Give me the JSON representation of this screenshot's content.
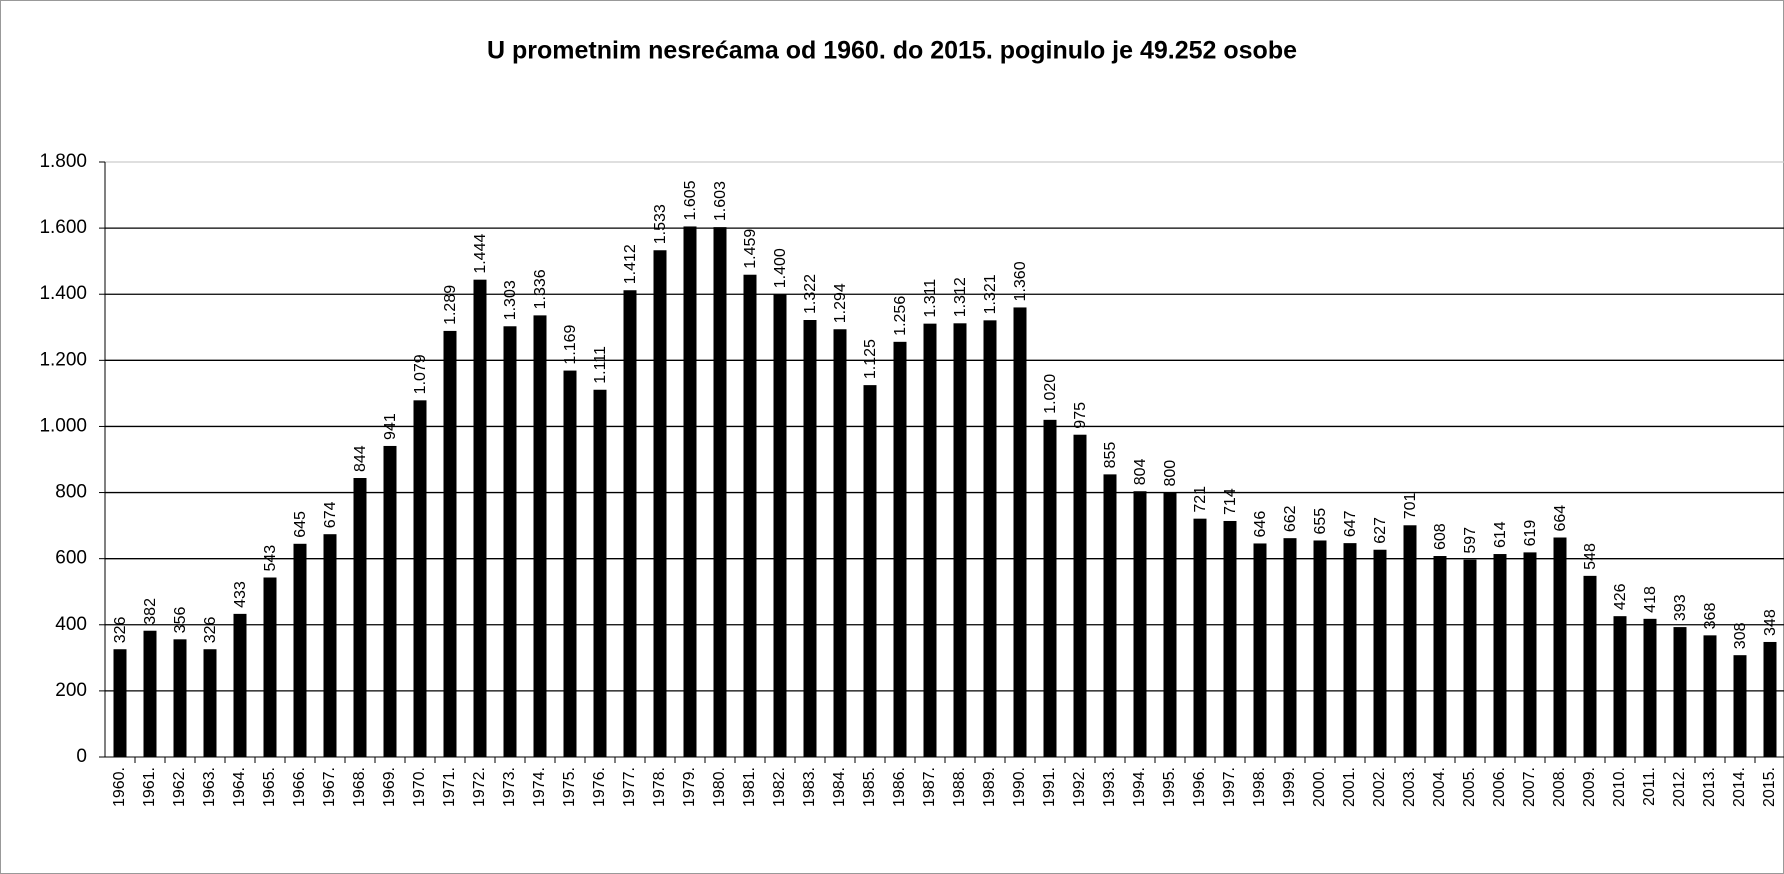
{
  "chart_data": {
    "type": "bar",
    "title": "U prometnim nesrećama od 1960. do 2015. poginulo je 49.252 osobe",
    "categories": [
      "1960.",
      "1961.",
      "1962.",
      "1963.",
      "1964.",
      "1965.",
      "1966.",
      "1967.",
      "1968.",
      "1969.",
      "1970.",
      "1971.",
      "1972.",
      "1973.",
      "1974.",
      "1975.",
      "1976.",
      "1977.",
      "1978.",
      "1979.",
      "1980.",
      "1981.",
      "1982.",
      "1983.",
      "1984.",
      "1985.",
      "1986.",
      "1987.",
      "1988.",
      "1989.",
      "1990.",
      "1991.",
      "1992.",
      "1993.",
      "1994.",
      "1995.",
      "1996.",
      "1997.",
      "1998.",
      "1999.",
      "2000.",
      "2001.",
      "2002.",
      "2003.",
      "2004.",
      "2005.",
      "2006.",
      "2007.",
      "2008.",
      "2009.",
      "2010.",
      "2011.",
      "2012.",
      "2013.",
      "2014.",
      "2015."
    ],
    "values": [
      326,
      382,
      356,
      326,
      433,
      543,
      645,
      674,
      844,
      941,
      1079,
      1289,
      1444,
      1303,
      1336,
      1169,
      1111,
      1412,
      1533,
      1605,
      1603,
      1459,
      1400,
      1322,
      1294,
      1125,
      1256,
      1311,
      1312,
      1321,
      1360,
      1020,
      975,
      855,
      804,
      800,
      721,
      714,
      646,
      662,
      655,
      647,
      627,
      701,
      608,
      597,
      614,
      619,
      664,
      548,
      426,
      418,
      393,
      368,
      308,
      348
    ],
    "value_labels": [
      "326",
      "382",
      "356",
      "326",
      "433",
      "543",
      "645",
      "674",
      "844",
      "941",
      "1.079",
      "1.289",
      "1.444",
      "1.303",
      "1.336",
      "1.169",
      "1.111",
      "1.412",
      "1.533",
      "1.605",
      "1.603",
      "1.459",
      "1.400",
      "1.322",
      "1.294",
      "1.125",
      "1.256",
      "1.311",
      "1.312",
      "1.321",
      "1.360",
      "1.020",
      "975",
      "855",
      "804",
      "800",
      "721",
      "714",
      "646",
      "662",
      "655",
      "647",
      "627",
      "701",
      "608",
      "597",
      "614",
      "619",
      "664",
      "548",
      "426",
      "418",
      "393",
      "368",
      "308",
      "348"
    ],
    "color": "#000000",
    "ylim": [
      0,
      1800
    ],
    "yticks": [
      0,
      200,
      400,
      600,
      800,
      {
        "value": 1000,
        "label": "1.000"
      },
      {
        "value": 1200,
        "label": "1.200"
      },
      {
        "value": 1400,
        "label": "1.400"
      },
      {
        "value": 1600,
        "label": "1.600"
      },
      {
        "value": 1800,
        "label": "1.800"
      }
    ],
    "grid": true
  }
}
